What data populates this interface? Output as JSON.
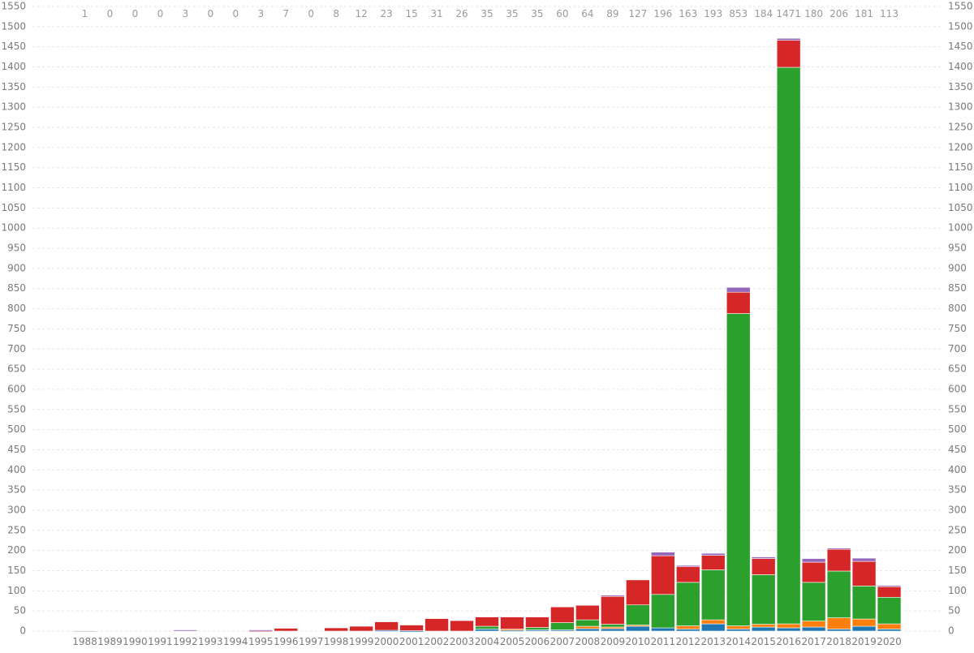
{
  "chart_data": {
    "type": "bar",
    "stacked": true,
    "grid": true,
    "title": "",
    "xlabel": "",
    "ylabel": "",
    "ylim": [
      0,
      1550
    ],
    "yticks": [
      0,
      50,
      100,
      150,
      200,
      250,
      300,
      350,
      400,
      450,
      500,
      550,
      600,
      650,
      700,
      750,
      800,
      850,
      900,
      950,
      1000,
      1050,
      1100,
      1150,
      1200,
      1250,
      1300,
      1350,
      1400,
      1450,
      1500,
      1550
    ],
    "categories": [
      "1988",
      "1989",
      "1990",
      "1991",
      "1992",
      "1993",
      "1994",
      "1995",
      "1996",
      "1997",
      "1998",
      "1999",
      "2000",
      "2001",
      "2002",
      "2003",
      "2004",
      "2005",
      "2006",
      "2007",
      "2008",
      "2009",
      "2010",
      "2011",
      "2012",
      "2013",
      "2014",
      "2015",
      "2016",
      "2017",
      "2018",
      "2019",
      "2020"
    ],
    "totals": [
      "1",
      "0",
      "0",
      "0",
      "3",
      "0",
      "0",
      "3",
      "7",
      "0",
      "8",
      "12",
      "23",
      "15",
      "31",
      "26",
      "35",
      "35",
      "35",
      "60",
      "64",
      "89",
      "127",
      "196",
      "163",
      "193",
      "853",
      "184",
      "1471",
      "180",
      "206",
      "181",
      "113"
    ],
    "series": [
      {
        "color": "#1f77b4",
        "values": [
          0,
          0,
          0,
          0,
          0,
          0,
          0,
          0,
          0,
          0,
          0,
          0,
          2,
          1,
          0,
          0,
          5,
          2,
          3,
          3,
          6,
          6,
          12,
          8,
          5,
          18,
          5,
          10,
          8,
          10,
          5,
          12,
          5
        ]
      },
      {
        "color": "#ff7f0e",
        "values": [
          0,
          0,
          0,
          0,
          0,
          0,
          0,
          0,
          0,
          0,
          0,
          0,
          0,
          0,
          0,
          0,
          0,
          3,
          0,
          0,
          6,
          4,
          3,
          0,
          8,
          10,
          8,
          7,
          10,
          15,
          28,
          18,
          13
        ]
      },
      {
        "color": "#2ca02c",
        "values": [
          0,
          0,
          0,
          0,
          0,
          0,
          0,
          0,
          0,
          0,
          0,
          0,
          0,
          0,
          0,
          0,
          7,
          0,
          6,
          18,
          16,
          7,
          50,
          83,
          108,
          124,
          775,
          123,
          1381,
          96,
          116,
          82,
          66
        ]
      },
      {
        "color": "#d62728",
        "values": [
          0,
          0,
          0,
          0,
          0,
          0,
          0,
          1,
          7,
          0,
          8,
          12,
          21,
          14,
          31,
          26,
          23,
          30,
          26,
          39,
          36,
          71,
          62,
          96,
          40,
          36,
          53,
          40,
          67,
          50,
          55,
          61,
          28
        ]
      },
      {
        "color": "#9467bd",
        "values": [
          0,
          0,
          0,
          0,
          3,
          0,
          0,
          2,
          0,
          0,
          0,
          0,
          0,
          0,
          0,
          0,
          0,
          0,
          0,
          0,
          0,
          1,
          0,
          9,
          2,
          5,
          12,
          4,
          5,
          9,
          2,
          8,
          1
        ]
      },
      {
        "color": "#c7c7c7",
        "values": [
          1,
          0,
          0,
          0,
          0,
          0,
          0,
          0,
          0,
          0,
          0,
          0,
          0,
          0,
          0,
          0,
          0,
          0,
          0,
          0,
          0,
          0,
          0,
          0,
          0,
          0,
          0,
          0,
          0,
          0,
          0,
          0,
          0
        ]
      }
    ]
  }
}
